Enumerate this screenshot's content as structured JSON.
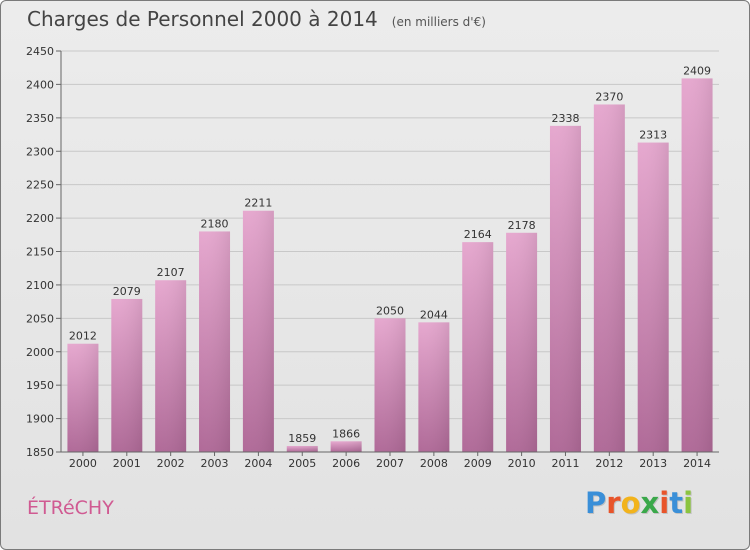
{
  "title": "Charges de Personnel 2000 à 2014",
  "unit": "(en milliers d'€)",
  "commune": "ÉTRéCHY",
  "logo": {
    "text": "Proxiti",
    "colors": [
      "#3a8fd8",
      "#e8542a",
      "#f2b31c",
      "#3aa84a",
      "#e8542a",
      "#3a8fd8",
      "#8bc43f"
    ]
  },
  "chart_data": {
    "type": "bar",
    "categories": [
      "2000",
      "2001",
      "2002",
      "2003",
      "2004",
      "2005",
      "2006",
      "2007",
      "2008",
      "2009",
      "2010",
      "2011",
      "2012",
      "2013",
      "2014"
    ],
    "values": [
      2012,
      2079,
      2107,
      2180,
      2211,
      1859,
      1866,
      2050,
      2044,
      2164,
      2178,
      2338,
      2370,
      2313,
      2409
    ],
    "ylim": [
      1850,
      2450
    ],
    "yticks": [
      1850,
      1900,
      1950,
      2000,
      2050,
      2100,
      2150,
      2200,
      2250,
      2300,
      2350,
      2400,
      2450
    ],
    "grid": true,
    "bar_color": "#d58cb6"
  }
}
